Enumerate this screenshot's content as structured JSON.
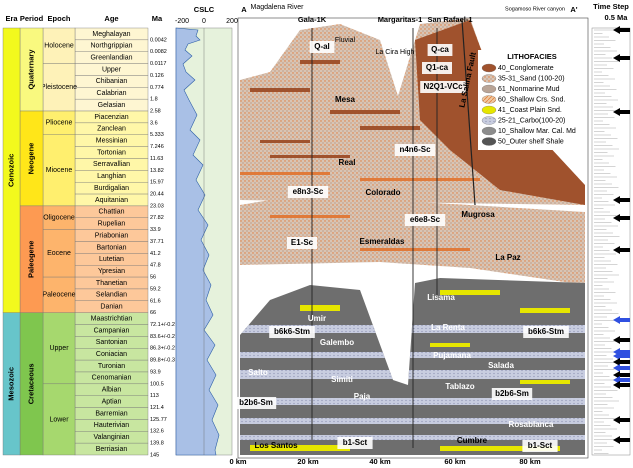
{
  "column": {
    "headers": [
      "Era",
      "Period",
      "Epoch",
      "Age",
      "Ma"
    ],
    "eras": [
      {
        "name": "Cenozoic",
        "periods": [
          {
            "name": "Quaternary",
            "epochs": [
              {
                "name": "Holocene",
                "ages": [
                  {
                    "name": "Meghalayan",
                    "ma": "0.0042"
                  },
                  {
                    "name": "Northgrippian",
                    "ma": "0.0082"
                  },
                  {
                    "name": "Greenlandian",
                    "ma": "0.0117"
                  }
                ]
              },
              {
                "name": "Pleistocene",
                "ages": [
                  {
                    "name": "Upper",
                    "ma": "0.126"
                  },
                  {
                    "name": "Chibanian",
                    "ma": "0.774"
                  },
                  {
                    "name": "Calabrian",
                    "ma": "1.8"
                  },
                  {
                    "name": "Gelasian",
                    "ma": "2.58"
                  }
                ]
              }
            ]
          },
          {
            "name": "Neogene",
            "epochs": [
              {
                "name": "Pliocene",
                "ages": [
                  {
                    "name": "Piacenzian",
                    "ma": "3.6"
                  },
                  {
                    "name": "Zanclean",
                    "ma": "5.333"
                  }
                ]
              },
              {
                "name": "Miocene",
                "ages": [
                  {
                    "name": "Messinian",
                    "ma": "7.246"
                  },
                  {
                    "name": "Tortonian",
                    "ma": "11.63"
                  },
                  {
                    "name": "Serravallian",
                    "ma": "13.82"
                  },
                  {
                    "name": "Langhian",
                    "ma": "15.97"
                  },
                  {
                    "name": "Burdigalian",
                    "ma": "20.44"
                  },
                  {
                    "name": "Aquitanian",
                    "ma": "23.03"
                  }
                ]
              }
            ]
          },
          {
            "name": "Paleogene",
            "epochs": [
              {
                "name": "Oligocene",
                "ages": [
                  {
                    "name": "Chattian",
                    "ma": "27.82"
                  },
                  {
                    "name": "Rupelian",
                    "ma": "33.9"
                  }
                ]
              },
              {
                "name": "Eocene",
                "ages": [
                  {
                    "name": "Priabonian",
                    "ma": "37.71"
                  },
                  {
                    "name": "Bartonian",
                    "ma": "41.2"
                  },
                  {
                    "name": "Lutetian",
                    "ma": "47.8"
                  },
                  {
                    "name": "Ypresian",
                    "ma": "56"
                  }
                ]
              },
              {
                "name": "Paleocene",
                "ages": [
                  {
                    "name": "Thanetian",
                    "ma": "59.2"
                  },
                  {
                    "name": "Selandian",
                    "ma": "61.6"
                  },
                  {
                    "name": "Danian",
                    "ma": "66"
                  }
                ]
              }
            ]
          }
        ]
      },
      {
        "name": "Mesozoic",
        "periods": [
          {
            "name": "Cretaceous",
            "epochs": [
              {
                "name": "Upper",
                "ages": [
                  {
                    "name": "Maastrichtian",
                    "ma": "72.1+/-0.2"
                  },
                  {
                    "name": "Campanian",
                    "ma": "83.6+/-0.2"
                  },
                  {
                    "name": "Santonian",
                    "ma": "86.3+/-0.2"
                  },
                  {
                    "name": "Coniacian",
                    "ma": "89.8+/-0.3"
                  },
                  {
                    "name": "Turonian",
                    "ma": "93.9"
                  },
                  {
                    "name": "Cenomanian",
                    "ma": "100.5"
                  }
                ]
              },
              {
                "name": "Lower",
                "ages": [
                  {
                    "name": "Albian",
                    "ma": "113"
                  },
                  {
                    "name": "Aptian",
                    "ma": "121.4"
                  },
                  {
                    "name": "Barremian",
                    "ma": "125.77"
                  },
                  {
                    "name": "Hauterivian",
                    "ma": "132.6"
                  },
                  {
                    "name": "Valanginian",
                    "ma": "139.8"
                  },
                  {
                    "name": "Berriasian",
                    "ma": "145"
                  }
                ]
              }
            ]
          }
        ]
      }
    ]
  },
  "cslc": {
    "title": "CSLC",
    "ticks": [
      "-200",
      "0",
      "200"
    ],
    "unit": "m"
  },
  "section": {
    "ends": [
      "A",
      "A'"
    ],
    "places": [
      "Magdalena River",
      "Sogamoso River canyon"
    ],
    "wells": [
      "Gala-1K",
      "Margaritas-1",
      "San Rafael-1"
    ],
    "distance": [
      "0 km",
      "20 km",
      "40 km",
      "60 km",
      "80 km"
    ],
    "labels": [
      "Q-al",
      "Fluvial",
      "La Cira High",
      "Q-ca",
      "Q1-ca",
      "N2Q1-VCc",
      "La Salina Fault",
      "Mesa",
      "Real",
      "n4n6-Sc",
      "e8n3-Sc",
      "Colorado",
      "Mugrosa",
      "e6e8-Sc",
      "E1-Sc",
      "Esmeraldas",
      "La Paz",
      "Lisama",
      "Umir",
      "b6k6-Stm",
      "La Renta",
      "b6k6-Stm",
      "Galembo",
      "Pujamana",
      "Salto",
      "Simiti",
      "Salada",
      "Tablazo",
      "Paja",
      "b2b6-Sm",
      "b2b6-Sm",
      "Rosablanca",
      "Los Santos",
      "b1-Sct",
      "Cumbre",
      "b1-Sct"
    ]
  },
  "legend": {
    "title": "LITHOFACIES",
    "items": [
      "40_Conglomerate",
      "35-31_Sand (100-20)",
      "61_Nonmarine Mud",
      "60_Shallow Crs. Snd.",
      "41_Coast Plain Snd.",
      "25-21_Carbo(100-20)",
      "10_Shallow Mar. Cal. Md",
      "50_Outer shelf Shale"
    ]
  },
  "timestep": {
    "title": "Time Step",
    "unit": "0.5 Ma"
  }
}
